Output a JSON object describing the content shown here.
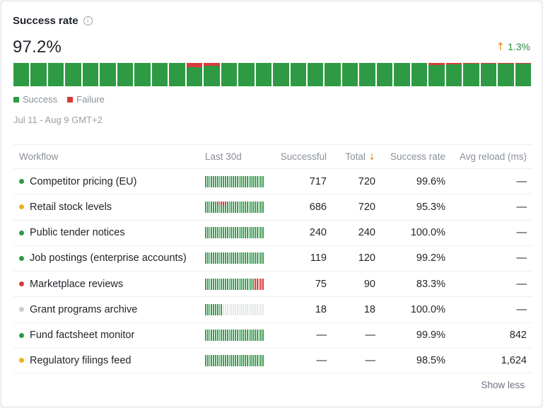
{
  "header": {
    "title": "Success rate",
    "value": "97.2%",
    "delta": "1.3%"
  },
  "colors": {
    "success": "#2e9a44",
    "failure": "#d93b3b",
    "accent_arrow": "#e08a1e",
    "dot_green": "#2e9a44",
    "dot_yellow": "#e7b416",
    "dot_red": "#d93b3b",
    "dot_gray": "#c9cdd2"
  },
  "day_failure_fractions": [
    0,
    0,
    0,
    0,
    0,
    0,
    0,
    0,
    0,
    0,
    0.18,
    0.12,
    0,
    0,
    0,
    0,
    0,
    0,
    0,
    0,
    0,
    0,
    0,
    0,
    0.1,
    0.07,
    0.04,
    0.04,
    0.04,
    0.04
  ],
  "legend": {
    "success": "Success",
    "failure": "Failure"
  },
  "range": "Jul 11 - Aug 9  GMT+2",
  "table": {
    "columns": {
      "workflow": "Workflow",
      "last30": "Last 30d",
      "successful": "Successful",
      "total": "Total",
      "success_rate": "Success rate",
      "avg_reload": "Avg reload (ms)"
    },
    "rows": [
      {
        "name": "Competitor pricing (EU)",
        "status": "green",
        "successful": "717",
        "total": "720",
        "rate": "99.6%",
        "reload": "—",
        "active_days": 30,
        "failure_days": []
      },
      {
        "name": "Retail stock levels",
        "status": "yellow",
        "successful": "686",
        "total": "720",
        "rate": "95.3%",
        "reload": "—",
        "active_days": 30,
        "failure_days": [
          6,
          7,
          8,
          9,
          10
        ]
      },
      {
        "name": "Public tender notices",
        "status": "green",
        "successful": "240",
        "total": "240",
        "rate": "100.0%",
        "reload": "—",
        "active_days": 30,
        "failure_days": []
      },
      {
        "name": "Job postings (enterprise accounts)",
        "status": "green",
        "successful": "119",
        "total": "120",
        "rate": "99.2%",
        "reload": "—",
        "active_days": 30,
        "failure_days": []
      },
      {
        "name": "Marketplace reviews",
        "status": "red",
        "successful": "75",
        "total": "90",
        "rate": "83.3%",
        "reload": "—",
        "active_days": 30,
        "failure_days": [
          25,
          26,
          27,
          28,
          29
        ]
      },
      {
        "name": "Grant programs archive",
        "status": "gray",
        "successful": "18",
        "total": "18",
        "rate": "100.0%",
        "reload": "—",
        "active_days": 9,
        "failure_days": []
      },
      {
        "name": "Fund factsheet monitor",
        "status": "green",
        "successful": "—",
        "total": "—",
        "rate": "99.9%",
        "reload": "842",
        "active_days": 30,
        "failure_days": []
      },
      {
        "name": "Regulatory filings feed",
        "status": "yellow",
        "successful": "—",
        "total": "—",
        "rate": "98.5%",
        "reload": "1,624",
        "active_days": 30,
        "failure_days": []
      }
    ]
  },
  "footer": {
    "show_less": "Show less"
  }
}
